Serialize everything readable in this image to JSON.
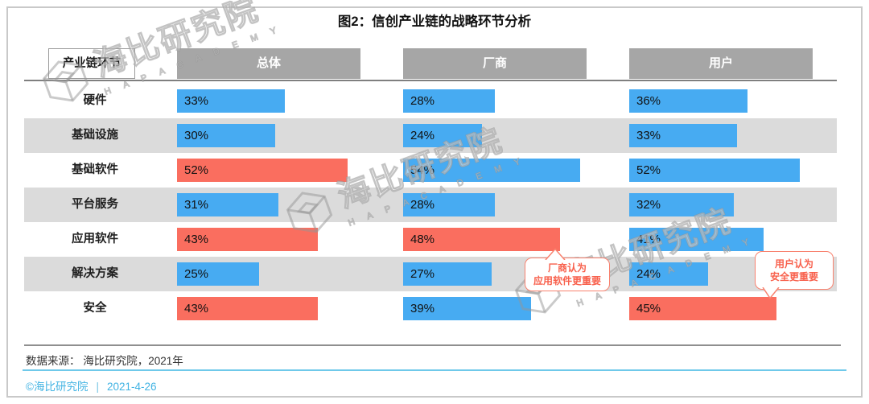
{
  "title": "图2：信创产业链的战略环节分析",
  "watermark": {
    "brand": "海比研究院",
    "sub": "H A P   A C A D E M Y"
  },
  "table": {
    "corner_label": "产业链环节",
    "columns": [
      "总体",
      "厂商",
      "用户"
    ],
    "rows": [
      {
        "label": "硬件",
        "cells": [
          {
            "text": "33%",
            "value": 33,
            "color": "blue"
          },
          {
            "text": "28%",
            "value": 28,
            "color": "blue"
          },
          {
            "text": "36%",
            "value": 36,
            "color": "blue"
          }
        ]
      },
      {
        "label": "基础设施",
        "cells": [
          {
            "text": "30%",
            "value": 30,
            "color": "blue"
          },
          {
            "text": "24%",
            "value": 24,
            "color": "blue"
          },
          {
            "text": "33%",
            "value": 33,
            "color": "blue"
          }
        ]
      },
      {
        "label": "基础软件",
        "cells": [
          {
            "text": "52%",
            "value": 52,
            "color": "red"
          },
          {
            "text": "54%",
            "value": 54,
            "color": "blue"
          },
          {
            "text": "52%",
            "value": 52,
            "color": "blue"
          }
        ]
      },
      {
        "label": "平台服务",
        "cells": [
          {
            "text": "31%",
            "value": 31,
            "color": "blue"
          },
          {
            "text": "28%",
            "value": 28,
            "color": "blue"
          },
          {
            "text": "32%",
            "value": 32,
            "color": "blue"
          }
        ]
      },
      {
        "label": "应用软件",
        "cells": [
          {
            "text": "43%",
            "value": 43,
            "color": "red"
          },
          {
            "text": "48%",
            "value": 48,
            "color": "red"
          },
          {
            "text": "41%",
            "value": 41,
            "color": "blue"
          }
        ]
      },
      {
        "label": "解决方案",
        "cells": [
          {
            "text": "25%",
            "value": 25,
            "color": "blue"
          },
          {
            "text": "27%",
            "value": 27,
            "color": "blue"
          },
          {
            "text": "24%",
            "value": 24,
            "color": "blue"
          }
        ]
      },
      {
        "label": "安全",
        "cells": [
          {
            "text": "43%",
            "value": 43,
            "color": "red"
          },
          {
            "text": "39%",
            "value": 39,
            "color": "blue"
          },
          {
            "text": "45%",
            "value": 45,
            "color": "red"
          }
        ]
      }
    ]
  },
  "callouts": {
    "vendor": {
      "line1": "厂商认为",
      "line2": "应用软件更重要"
    },
    "user": {
      "line1": "用户认为",
      "line2": "安全更重要"
    }
  },
  "source_note": "数据来源： 海比研究院，2021年",
  "footer": {
    "brand": "©海比研究院",
    "separator": "|",
    "date": "2021-4-26"
  },
  "colors": {
    "blue": "#47ABF2",
    "red": "#FA6E5F",
    "header_gray": "#A6A6A6",
    "band_gray": "#DBDBDB",
    "callout_red": "#F8604C",
    "footer_blue": "#41B3E3"
  },
  "chart_data": {
    "type": "bar",
    "orientation": "horizontal",
    "title": "图2：信创产业链的战略环节分析",
    "categories": [
      "硬件",
      "基础设施",
      "基础软件",
      "平台服务",
      "应用软件",
      "解决方案",
      "安全"
    ],
    "series": [
      {
        "name": "总体",
        "values": [
          33,
          30,
          52,
          31,
          43,
          25,
          43
        ],
        "red_highlight": [
          false,
          false,
          true,
          false,
          true,
          false,
          true
        ]
      },
      {
        "name": "厂商",
        "values": [
          28,
          24,
          54,
          28,
          48,
          27,
          39
        ],
        "red_highlight": [
          false,
          false,
          false,
          false,
          true,
          false,
          false
        ]
      },
      {
        "name": "用户",
        "values": [
          36,
          33,
          52,
          32,
          41,
          24,
          45
        ],
        "red_highlight": [
          false,
          false,
          false,
          false,
          false,
          false,
          true
        ]
      }
    ],
    "unit": "%",
    "xlim": [
      0,
      56
    ],
    "data_labels": true,
    "annotations": [
      "厂商认为应用软件更重要",
      "用户认为安全更重要"
    ],
    "source": "数据来源： 海比研究院，2021年",
    "date": "2021-4-26"
  }
}
